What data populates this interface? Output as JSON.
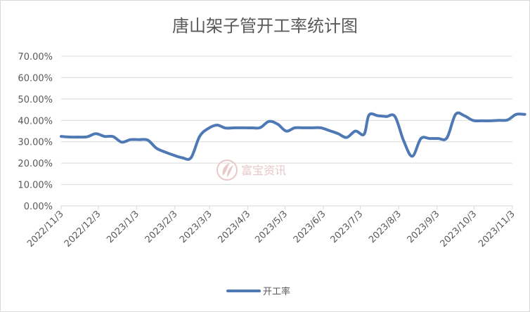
{
  "chart_data": {
    "type": "line",
    "title": "唐山架子管开工率统计图",
    "xlabel": "",
    "ylabel": "",
    "ylim": [
      0,
      0.7
    ],
    "y_ticks": [
      {
        "value": 0.0,
        "label": "0.00%"
      },
      {
        "value": 0.1,
        "label": "10.00%"
      },
      {
        "value": 0.2,
        "label": "20.00%"
      },
      {
        "value": 0.3,
        "label": "30.00%"
      },
      {
        "value": 0.4,
        "label": "40.00%"
      },
      {
        "value": 0.5,
        "label": "50.00%"
      },
      {
        "value": 0.6,
        "label": "60.00%"
      },
      {
        "value": 0.7,
        "label": "70.00%"
      }
    ],
    "x_range": [
      "2022-11-03",
      "2023-11-03"
    ],
    "x_ticks": [
      {
        "date": "2022-11-03",
        "label": "2022/11/3"
      },
      {
        "date": "2022-12-03",
        "label": "2022/12/3"
      },
      {
        "date": "2023-01-03",
        "label": "2023/1/3"
      },
      {
        "date": "2023-02-03",
        "label": "2023/2/3"
      },
      {
        "date": "2023-03-03",
        "label": "2023/3/3"
      },
      {
        "date": "2023-04-03",
        "label": "2023/4/3"
      },
      {
        "date": "2023-05-03",
        "label": "2023/5/3"
      },
      {
        "date": "2023-06-03",
        "label": "2023/6/3"
      },
      {
        "date": "2023-07-03",
        "label": "2023/7/3"
      },
      {
        "date": "2023-08-03",
        "label": "2023/8/3"
      },
      {
        "date": "2023-09-03",
        "label": "2023/9/3"
      },
      {
        "date": "2023-10-03",
        "label": "2023/10/3"
      },
      {
        "date": "2023-11-03",
        "label": "2023/11/3"
      }
    ],
    "grid": true,
    "legend": "bottom",
    "series": [
      {
        "name": "开工率",
        "color": "#4e79b4",
        "points": [
          [
            "2022-11-03",
            0.325
          ],
          [
            "2022-11-10",
            0.322
          ],
          [
            "2022-11-17",
            0.322
          ],
          [
            "2022-11-24",
            0.323
          ],
          [
            "2022-12-01",
            0.338
          ],
          [
            "2022-12-08",
            0.325
          ],
          [
            "2022-12-15",
            0.324
          ],
          [
            "2022-12-22",
            0.298
          ],
          [
            "2022-12-29",
            0.31
          ],
          [
            "2023-01-05",
            0.31
          ],
          [
            "2023-01-12",
            0.308
          ],
          [
            "2023-01-19",
            0.27
          ],
          [
            "2023-01-26",
            0.252
          ],
          [
            "2023-02-02",
            0.237
          ],
          [
            "2023-02-09",
            0.225
          ],
          [
            "2023-02-16",
            0.225
          ],
          [
            "2023-02-23",
            0.325
          ],
          [
            "2023-03-02",
            0.362
          ],
          [
            "2023-03-09",
            0.378
          ],
          [
            "2023-03-16",
            0.364
          ],
          [
            "2023-03-23",
            0.365
          ],
          [
            "2023-03-30",
            0.365
          ],
          [
            "2023-04-06",
            0.365
          ],
          [
            "2023-04-13",
            0.366
          ],
          [
            "2023-04-20",
            0.395
          ],
          [
            "2023-04-27",
            0.383
          ],
          [
            "2023-05-04",
            0.35
          ],
          [
            "2023-05-11",
            0.365
          ],
          [
            "2023-05-18",
            0.365
          ],
          [
            "2023-05-25",
            0.365
          ],
          [
            "2023-06-01",
            0.365
          ],
          [
            "2023-06-08",
            0.352
          ],
          [
            "2023-06-15",
            0.338
          ],
          [
            "2023-06-22",
            0.32
          ],
          [
            "2023-06-29",
            0.35
          ],
          [
            "2023-07-06",
            0.335
          ],
          [
            "2023-07-10",
            0.425
          ],
          [
            "2023-07-17",
            0.422
          ],
          [
            "2023-07-24",
            0.418
          ],
          [
            "2023-07-31",
            0.418
          ],
          [
            "2023-08-07",
            0.305
          ],
          [
            "2023-08-14",
            0.232
          ],
          [
            "2023-08-21",
            0.315
          ],
          [
            "2023-08-28",
            0.315
          ],
          [
            "2023-09-04",
            0.315
          ],
          [
            "2023-09-11",
            0.318
          ],
          [
            "2023-09-18",
            0.428
          ],
          [
            "2023-09-25",
            0.422
          ],
          [
            "2023-10-02",
            0.4
          ],
          [
            "2023-10-09",
            0.398
          ],
          [
            "2023-10-16",
            0.398
          ],
          [
            "2023-10-23",
            0.4
          ],
          [
            "2023-10-30",
            0.402
          ],
          [
            "2023-11-06",
            0.428
          ],
          [
            "2023-11-13",
            0.428
          ]
        ]
      }
    ]
  },
  "watermark": {
    "text": "富宝资讯",
    "color": "#e8c9c9"
  }
}
